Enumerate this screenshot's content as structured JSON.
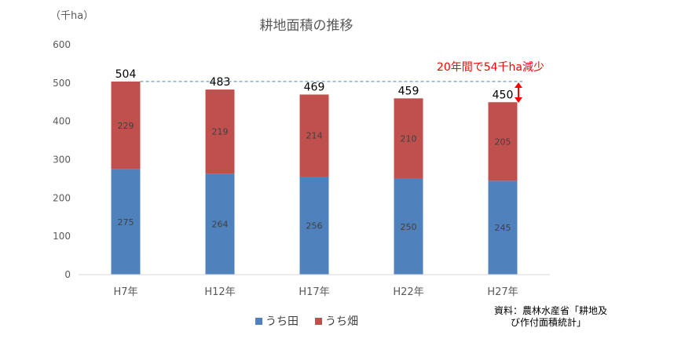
{
  "chart_data": {
    "type": "bar",
    "stacked": true,
    "title": "耕地面積の推移",
    "unit_label": "（千ha）",
    "categories": [
      "H7年",
      "H12年",
      "H17年",
      "H22年",
      "H27年"
    ],
    "series": [
      {
        "name": "うち田",
        "values": [
          275,
          264,
          256,
          250,
          245
        ],
        "color": "#4f81bd"
      },
      {
        "name": "うち畑",
        "values": [
          229,
          219,
          214,
          210,
          205
        ],
        "color": "#c0504d"
      }
    ],
    "totals": [
      504,
      483,
      469,
      459,
      450
    ],
    "ylim": [
      0,
      600
    ],
    "yticks": [
      0,
      100,
      200,
      300,
      400,
      500,
      600
    ],
    "grid": false,
    "legend": "bottom",
    "annotation": "20年間で54千ha減少",
    "reference_line_value": 504,
    "source": [
      "資料：農林水産省「耕地及",
      "び作付面積統計」"
    ]
  }
}
